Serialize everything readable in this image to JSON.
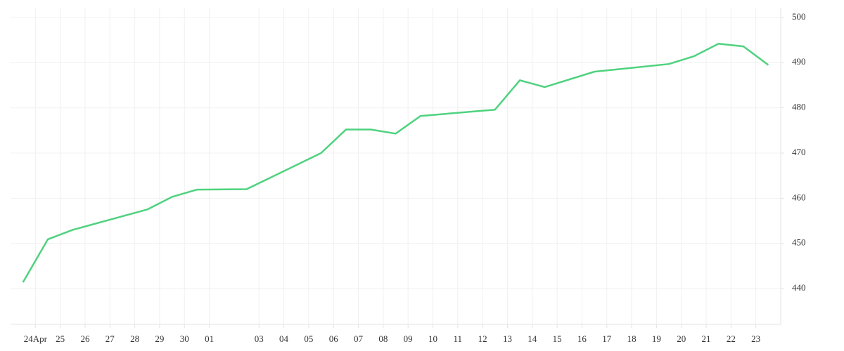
{
  "chart_data": {
    "type": "line",
    "x": [
      0,
      1,
      2,
      5,
      6,
      7,
      9,
      12,
      13,
      14,
      15,
      16,
      19,
      20,
      21,
      23,
      26,
      27,
      28,
      29,
      30
    ],
    "series": [
      {
        "color": "#4fd27f",
        "values": [
          441.4,
          450.9,
          453.0,
          457.5,
          460.3,
          461.9,
          462.0,
          470.0,
          475.2,
          475.2,
          474.3,
          478.2,
          479.6,
          486.1,
          484.6,
          488.0,
          489.7,
          491.4,
          494.2,
          493.6,
          489.5
        ]
      }
    ],
    "xlim": [
      -0.5,
      30.5
    ],
    "xticks": [
      {
        "value": 0.5,
        "label": "24Apr"
      },
      {
        "value": 1.5,
        "label": "25"
      },
      {
        "value": 2.5,
        "label": "26"
      },
      {
        "value": 3.5,
        "label": "27"
      },
      {
        "value": 4.5,
        "label": "28"
      },
      {
        "value": 5.5,
        "label": "29"
      },
      {
        "value": 6.5,
        "label": "30"
      },
      {
        "value": 7.5,
        "label": "01"
      },
      {
        "value": 9.5,
        "label": "03"
      },
      {
        "value": 10.5,
        "label": "04"
      },
      {
        "value": 11.5,
        "label": "05"
      },
      {
        "value": 12.5,
        "label": "06"
      },
      {
        "value": 13.5,
        "label": "07"
      },
      {
        "value": 14.5,
        "label": "08"
      },
      {
        "value": 15.5,
        "label": "09"
      },
      {
        "value": 16.5,
        "label": "10"
      },
      {
        "value": 17.5,
        "label": "11"
      },
      {
        "value": 18.5,
        "label": "12"
      },
      {
        "value": 19.5,
        "label": "13"
      },
      {
        "value": 20.5,
        "label": "14"
      },
      {
        "value": 21.5,
        "label": "15"
      },
      {
        "value": 22.5,
        "label": "16"
      },
      {
        "value": 23.5,
        "label": "17"
      },
      {
        "value": 24.5,
        "label": "18"
      },
      {
        "value": 25.5,
        "label": "19"
      },
      {
        "value": 26.5,
        "label": "20"
      },
      {
        "value": 27.5,
        "label": "21"
      },
      {
        "value": 28.5,
        "label": "22"
      },
      {
        "value": 29.5,
        "label": "23"
      }
    ],
    "ylim": [
      432.1,
      502.0
    ],
    "yticks": [
      440,
      450,
      460,
      470,
      480,
      490,
      500
    ],
    "grid": true
  }
}
